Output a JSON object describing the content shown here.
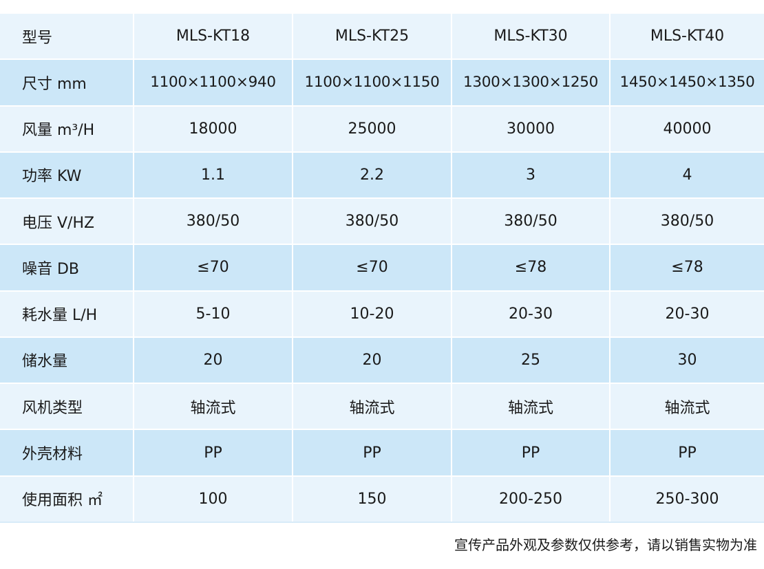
{
  "table": {
    "rows": [
      {
        "label": "型号",
        "values": [
          "MLS-KT18",
          "MLS-KT25",
          "MLS-KT30",
          "MLS-KT40"
        ]
      },
      {
        "label": "尺寸 mm",
        "values": [
          "1100×1100×940",
          "1100×1100×1150",
          "1300×1300×1250",
          "1450×1450×1350"
        ]
      },
      {
        "label": "风量 m³/H",
        "values": [
          "18000",
          "25000",
          "30000",
          "40000"
        ]
      },
      {
        "label": "功率 KW",
        "values": [
          "1.1",
          "2.2",
          "3",
          "4"
        ]
      },
      {
        "label": "电压 V/HZ",
        "values": [
          "380/50",
          "380/50",
          "380/50",
          "380/50"
        ]
      },
      {
        "label": "噪音 DB",
        "values": [
          "≤70",
          "≤70",
          "≤78",
          "≤78"
        ]
      },
      {
        "label": "耗水量 L/H",
        "values": [
          "5-10",
          "10-20",
          "20-30",
          "20-30"
        ]
      },
      {
        "label": "储水量",
        "values": [
          "20",
          "20",
          "25",
          "30"
        ]
      },
      {
        "label": "风机类型",
        "values": [
          "轴流式",
          "轴流式",
          "轴流式",
          "轴流式"
        ]
      },
      {
        "label": "外壳材料",
        "values": [
          "PP",
          "PP",
          "PP",
          "PP"
        ]
      },
      {
        "label": "使用面积 ㎡",
        "values": [
          "100",
          "150",
          "200-250",
          "250-300"
        ]
      }
    ]
  },
  "footnote": "宣传产品外观及参数仅供参考，请以销售实物为准",
  "colors": {
    "row_light": "#e9f4fc",
    "row_dark": "#cce7f8",
    "text": "#1a1a1a"
  }
}
